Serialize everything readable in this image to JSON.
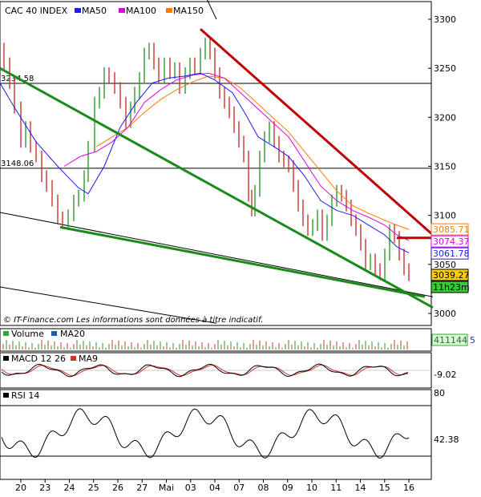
{
  "chart_data": {
    "type": "line",
    "instrument": "CAC 40 INDEX",
    "legend": [
      {
        "name": "MA50",
        "color": "#1a1aff"
      },
      {
        "name": "MA100",
        "color": "#e000e0"
      },
      {
        "name": "MA150",
        "color": "#ff7a00"
      }
    ],
    "y_axis": {
      "min": 3000,
      "max": 3300,
      "ticks": [
        3000,
        3050,
        3100,
        3150,
        3200,
        3250,
        3300
      ]
    },
    "x_ticks": [
      "20",
      "23",
      "24",
      "25",
      "26",
      "27",
      "Mai",
      "03",
      "04",
      "07",
      "08",
      "09",
      "10",
      "11",
      "14",
      "15",
      "16"
    ],
    "horizontal_levels": [
      {
        "label": "3234.58",
        "value": 3234.58
      },
      {
        "label": "3148.06",
        "value": 3148.06
      }
    ],
    "value_labels": [
      {
        "label": "3085.71",
        "value": 3085.71,
        "color": "#ff7a00"
      },
      {
        "label": "3074.37",
        "value": 3074.37,
        "color": "#e000e0"
      },
      {
        "label": "3061.78",
        "value": 3061.78,
        "color": "#1a1aff"
      },
      {
        "label": "3039.27",
        "value": 3039.27,
        "color": "#000000",
        "bg": "#ffcc00"
      },
      {
        "label": "11h23m",
        "value": 3027,
        "color": "#000000",
        "bg": "#33cc33"
      }
    ],
    "close_points": [
      [
        0,
        3270
      ],
      [
        5,
        3255
      ],
      [
        12,
        3235
      ],
      [
        18,
        3210
      ],
      [
        26,
        3175
      ],
      [
        32,
        3190
      ],
      [
        38,
        3170
      ],
      [
        45,
        3160
      ],
      [
        52,
        3140
      ],
      [
        58,
        3130
      ],
      [
        65,
        3115
      ],
      [
        72,
        3098
      ],
      [
        78,
        3093
      ],
      [
        85,
        3100
      ],
      [
        92,
        3115
      ],
      [
        98,
        3120
      ],
      [
        105,
        3140
      ],
      [
        110,
        3170
      ],
      [
        118,
        3215
      ],
      [
        124,
        3225
      ],
      [
        130,
        3245
      ],
      [
        136,
        3240
      ],
      [
        143,
        3230
      ],
      [
        150,
        3215
      ],
      [
        157,
        3195
      ],
      [
        163,
        3210
      ],
      [
        168,
        3225
      ],
      [
        174,
        3240
      ],
      [
        180,
        3265
      ],
      [
        186,
        3270
      ],
      [
        192,
        3255
      ],
      [
        198,
        3240
      ],
      [
        205,
        3255
      ],
      [
        212,
        3245
      ],
      [
        218,
        3250
      ],
      [
        224,
        3230
      ],
      [
        231,
        3245
      ],
      [
        237,
        3255
      ],
      [
        243,
        3250
      ],
      [
        250,
        3265
      ],
      [
        256,
        3275
      ],
      [
        262,
        3265
      ],
      [
        268,
        3245
      ],
      [
        274,
        3225
      ],
      [
        280,
        3215
      ],
      [
        286,
        3205
      ],
      [
        292,
        3190
      ],
      [
        298,
        3175
      ],
      [
        304,
        3160
      ],
      [
        310,
        3120
      ],
      [
        314,
        3105
      ],
      [
        318,
        3125
      ],
      [
        324,
        3160
      ],
      [
        330,
        3180
      ],
      [
        336,
        3190
      ],
      [
        342,
        3175
      ],
      [
        348,
        3160
      ],
      [
        354,
        3155
      ],
      [
        360,
        3150
      ],
      [
        366,
        3130
      ],
      [
        372,
        3110
      ],
      [
        378,
        3095
      ],
      [
        384,
        3085
      ],
      [
        390,
        3090
      ],
      [
        396,
        3100
      ],
      [
        402,
        3080
      ],
      [
        408,
        3095
      ],
      [
        414,
        3115
      ],
      [
        420,
        3125
      ],
      [
        426,
        3120
      ],
      [
        432,
        3110
      ],
      [
        438,
        3095
      ],
      [
        444,
        3085
      ],
      [
        450,
        3070
      ],
      [
        456,
        3050
      ],
      [
        462,
        3055
      ],
      [
        468,
        3045
      ],
      [
        474,
        3040
      ],
      [
        480,
        3060
      ],
      [
        486,
        3085
      ],
      [
        492,
        3078
      ],
      [
        498,
        3060
      ],
      [
        504,
        3045
      ],
      [
        510,
        3039
      ]
    ],
    "ma50_points": [
      [
        0,
        3235
      ],
      [
        18,
        3210
      ],
      [
        45,
        3175
      ],
      [
        72,
        3150
      ],
      [
        98,
        3128
      ],
      [
        110,
        3122
      ],
      [
        130,
        3150
      ],
      [
        150,
        3190
      ],
      [
        170,
        3215
      ],
      [
        190,
        3235
      ],
      [
        210,
        3240
      ],
      [
        230,
        3242
      ],
      [
        250,
        3245
      ],
      [
        268,
        3238
      ],
      [
        290,
        3225
      ],
      [
        305,
        3205
      ],
      [
        322,
        3180
      ],
      [
        342,
        3170
      ],
      [
        360,
        3160
      ],
      [
        380,
        3140
      ],
      [
        400,
        3115
      ],
      [
        420,
        3105
      ],
      [
        440,
        3100
      ],
      [
        460,
        3090
      ],
      [
        480,
        3080
      ],
      [
        495,
        3068
      ],
      [
        510,
        3061.78
      ]
    ],
    "ma100_points": [
      [
        80,
        3150
      ],
      [
        100,
        3160
      ],
      [
        120,
        3165
      ],
      [
        140,
        3175
      ],
      [
        160,
        3190
      ],
      [
        180,
        3215
      ],
      [
        200,
        3228
      ],
      [
        220,
        3238
      ],
      [
        240,
        3243
      ],
      [
        260,
        3245
      ],
      [
        280,
        3240
      ],
      [
        300,
        3225
      ],
      [
        320,
        3210
      ],
      [
        340,
        3195
      ],
      [
        360,
        3180
      ],
      [
        380,
        3155
      ],
      [
        400,
        3130
      ],
      [
        420,
        3115
      ],
      [
        440,
        3105
      ],
      [
        460,
        3098
      ],
      [
        480,
        3090
      ],
      [
        495,
        3080
      ],
      [
        510,
        3074.37
      ]
    ],
    "ma150_points": [
      [
        120,
        3170
      ],
      [
        140,
        3180
      ],
      [
        160,
        3190
      ],
      [
        180,
        3205
      ],
      [
        200,
        3218
      ],
      [
        220,
        3228
      ],
      [
        240,
        3236
      ],
      [
        260,
        3242
      ],
      [
        280,
        3240
      ],
      [
        300,
        3230
      ],
      [
        320,
        3215
      ],
      [
        340,
        3200
      ],
      [
        360,
        3185
      ],
      [
        380,
        3165
      ],
      [
        400,
        3145
      ],
      [
        420,
        3125
      ],
      [
        440,
        3110
      ],
      [
        460,
        3102
      ],
      [
        480,
        3095
      ],
      [
        495,
        3090
      ],
      [
        510,
        3085.71
      ]
    ],
    "trendlines": [
      {
        "name": "upper-resistance",
        "color": "#c00000",
        "from": [
          250,
          3290
        ],
        "to": [
          540,
          3080
        ]
      },
      {
        "name": "lower-support",
        "color": "#1a8a1a",
        "from": [
          0,
          3250
        ],
        "to": [
          540,
          3006
        ]
      },
      {
        "name": "lower-support-2",
        "color": "#1a8a1a",
        "from": [
          75,
          3088
        ],
        "to": [
          530,
          3017
        ]
      },
      {
        "name": "short-horizontal",
        "color": "#c00000",
        "from": [
          495,
          3077
        ],
        "to": [
          538,
          3077
        ]
      }
    ],
    "thin_lines": [
      {
        "from": [
          200,
          3420
        ],
        "to": [
          270,
          3300
        ]
      },
      {
        "from": [
          0,
          3103
        ],
        "to": [
          540,
          3017
        ]
      },
      {
        "from": [
          0,
          3027
        ],
        "to": [
          270,
          2990
        ]
      }
    ],
    "footer_note": "© IT-Finance.com   Les informations sont données à titre indicatif.",
    "panels": {
      "volume": {
        "label": "Volume",
        "ma_label": "MA20",
        "value_label": "411144",
        "extra_label": "5"
      },
      "macd": {
        "label": "MACD 12 26",
        "ma_label": "MA9",
        "value_label": "-9.02"
      },
      "rsi": {
        "label": "RSI 14",
        "top_label": "80",
        "value_label": "42.38",
        "value": 42.38
      }
    }
  }
}
